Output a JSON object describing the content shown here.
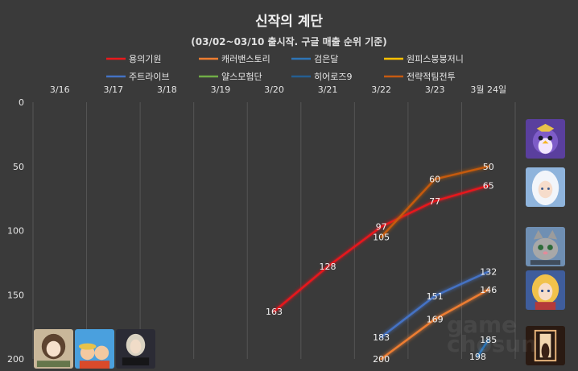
{
  "chart_data": {
    "type": "line",
    "title": "신작의 계단",
    "subtitle": "(03/02~03/10 출시작. 구글 매출 순위 기준)",
    "x_labels": [
      "3/16",
      "3/17",
      "3/18",
      "3/19",
      "3/20",
      "3/21",
      "3/22",
      "3/23",
      "3월 24일"
    ],
    "y_ticks": [
      "0",
      "50",
      "100",
      "150",
      "200"
    ],
    "ylim": [
      0,
      200
    ],
    "y_inverted": true,
    "grid": true,
    "legend_position": "top",
    "series": [
      {
        "name": "용의기원",
        "color": "#e8191c",
        "points": [
          [
            4,
            163
          ],
          [
            5,
            128
          ],
          [
            6,
            97
          ],
          [
            7,
            77
          ],
          [
            8,
            65
          ]
        ],
        "labels": [
          "163",
          "128",
          "97",
          "77",
          "65"
        ]
      },
      {
        "name": "캐러밴스토리",
        "color": "#ed7d31",
        "points": [
          [
            6,
            200
          ],
          [
            7,
            169
          ],
          [
            8,
            146
          ]
        ],
        "labels": [
          "200",
          "169",
          "146"
        ]
      },
      {
        "name": "검은달",
        "color": "#2e75b6",
        "points": [
          [
            7.8,
            198
          ],
          [
            8,
            185
          ]
        ],
        "labels": [
          "198",
          "185"
        ]
      },
      {
        "name": "원피스붕붕저니",
        "color": "#ffc000",
        "points": [],
        "labels": []
      },
      {
        "name": "주트라이브",
        "color": "#4472c4",
        "points": [
          [
            6,
            183
          ],
          [
            7,
            151
          ],
          [
            8,
            132
          ]
        ],
        "labels": [
          "183",
          "151",
          "132"
        ]
      },
      {
        "name": "얄스모험단",
        "color": "#70ad47",
        "points": [],
        "labels": []
      },
      {
        "name": "히어로즈9",
        "color": "#255e91",
        "points": [],
        "labels": []
      },
      {
        "name": "전략적팀전투",
        "color": "#c55a11",
        "points": [
          [
            6,
            105
          ],
          [
            7,
            60
          ],
          [
            8,
            50
          ]
        ],
        "labels": [
          "105",
          "60",
          "50"
        ]
      }
    ]
  },
  "watermark": "game chosun",
  "icons": [
    "game-icon-penguin-creature",
    "game-icon-white-haired-heroine",
    "game-icon-cartoon-cat",
    "game-icon-blonde-heroine",
    "game-icon-dark-warrior",
    "game-icon-anime-girl",
    "game-icon-onepiece-crew",
    "game-icon-heroes9-knight"
  ]
}
